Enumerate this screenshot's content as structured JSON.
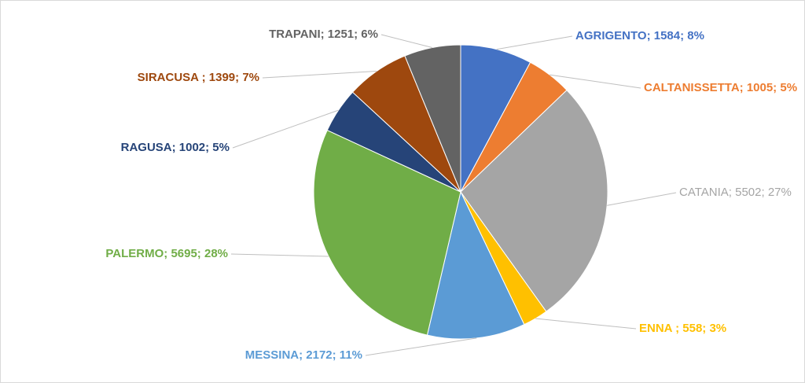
{
  "chart_data": {
    "type": "pie",
    "title": "",
    "legend": "none",
    "label_separator": "; ",
    "slices": [
      {
        "name": "AGRIGENTO",
        "label": "AGRIGENTO; 1584; 8%",
        "value": 1584,
        "percent": 8,
        "color": "#4472C4",
        "label_bold": true
      },
      {
        "name": "CALTANISSETTA",
        "label": "CALTANISSETTA; 1005; 5%",
        "value": 1005,
        "percent": 5,
        "color": "#ED7D31",
        "label_bold": true
      },
      {
        "name": "CATANIA",
        "label": "CATANIA; 5502; 27%",
        "value": 5502,
        "percent": 27,
        "color": "#A5A5A5",
        "label_bold": false
      },
      {
        "name": "ENNA",
        "label": "ENNA ; 558; 3%",
        "value": 558,
        "percent": 3,
        "color": "#FFC000",
        "label_bold": true
      },
      {
        "name": "MESSINA",
        "label": "MESSINA; 2172; 11%",
        "value": 2172,
        "percent": 11,
        "color": "#5B9BD5",
        "label_bold": true
      },
      {
        "name": "PALERMO",
        "label": "PALERMO; 5695; 28%",
        "value": 5695,
        "percent": 28,
        "color": "#70AD47",
        "label_bold": true
      },
      {
        "name": "RAGUSA",
        "label": "RAGUSA; 1002; 5%",
        "value": 1002,
        "percent": 5,
        "color": "#264478",
        "label_bold": true
      },
      {
        "name": "SIRACUSA",
        "label": "SIRACUSA ; 1399; 7%",
        "value": 1399,
        "percent": 7,
        "color": "#9E480E",
        "label_bold": true
      },
      {
        "name": "TRAPANI",
        "label": "TRAPANI; 1251; 6%",
        "value": 1251,
        "percent": 6,
        "color": "#636363",
        "label_bold": true
      }
    ],
    "leader_line_color": "#bfbfbf"
  }
}
